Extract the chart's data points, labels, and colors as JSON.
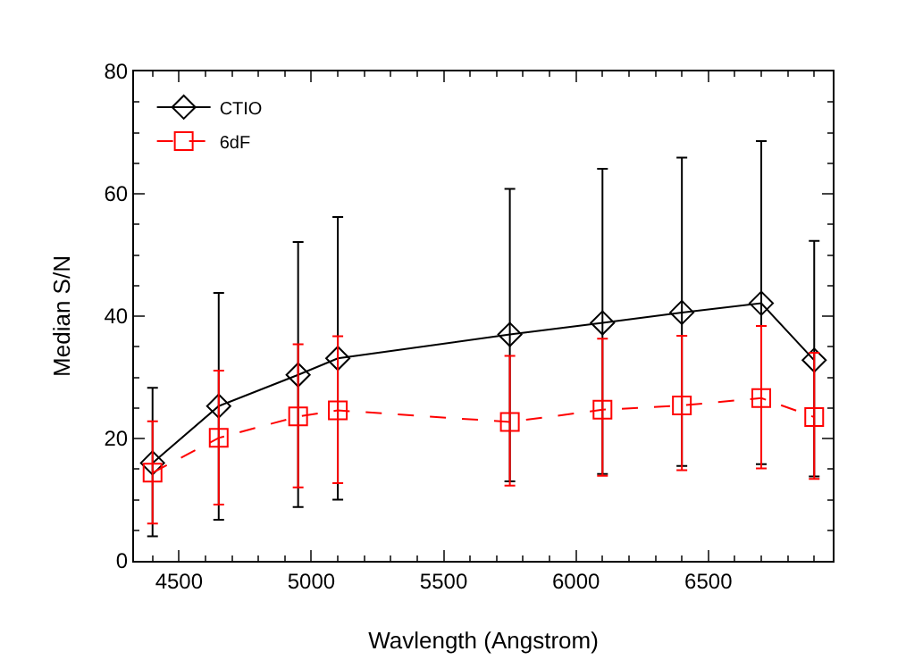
{
  "chart_data": {
    "type": "line",
    "xlabel": "Wavlength (Angstrom)",
    "ylabel": "Median S/N",
    "x": [
      4400,
      4650,
      4950,
      5100,
      5750,
      6100,
      6400,
      6700,
      6900
    ],
    "series": [
      {
        "name": "CTIO",
        "color": "#000000",
        "marker": "diamond",
        "line_style": "solid",
        "values": [
          16,
          25.3,
          30.4,
          33.1,
          37,
          38.9,
          40.6,
          42.1,
          32.8
        ],
        "errors": [
          [
            4,
            28.3
          ],
          [
            6.7,
            43.8
          ],
          [
            8.8,
            52.1
          ],
          [
            10,
            56.2
          ],
          [
            13,
            60.8
          ],
          [
            14.2,
            64.1
          ],
          [
            15.5,
            65.9
          ],
          [
            15.8,
            68.6
          ],
          [
            13.8,
            52.3
          ]
        ]
      },
      {
        "name": "6dF",
        "color": "#ff0000",
        "marker": "square",
        "line_style": "dashed",
        "values": [
          14.4,
          20.1,
          23.6,
          24.6,
          22.7,
          24.7,
          25.4,
          26.6,
          23.5
        ],
        "errors": [
          [
            6.1,
            22.8
          ],
          [
            9.2,
            31.1
          ],
          [
            12,
            35.4
          ],
          [
            12.7,
            36.7
          ],
          [
            12.3,
            33.5
          ],
          [
            13.9,
            36.3
          ],
          [
            14.8,
            36.8
          ],
          [
            15.1,
            38.4
          ],
          [
            13.4,
            34
          ]
        ]
      }
    ],
    "xlim": [
      4330,
      6970
    ],
    "xticks": [
      4500,
      5000,
      5500,
      6000,
      6500
    ],
    "ylim": [
      0,
      80
    ],
    "yticks": [
      0,
      20,
      40,
      60,
      80
    ],
    "grid": false,
    "legend": "top left"
  }
}
